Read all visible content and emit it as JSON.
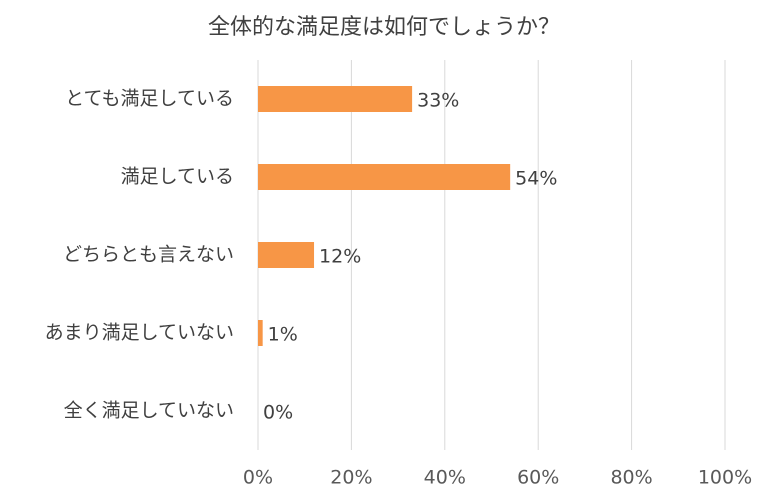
{
  "chart_data": {
    "type": "bar",
    "orientation": "horizontal",
    "title": "全体的な満足度は如何でしょうか？",
    "categories": [
      "とても満足している",
      "満足している",
      "どちらとも言えない",
      "あまり満足していない",
      "全く満足していない"
    ],
    "values": [
      33,
      54,
      12,
      1,
      0
    ],
    "value_labels": [
      "33%",
      "54%",
      "12%",
      "1%",
      "0%"
    ],
    "color": "#f79646",
    "xlim": [
      0,
      100
    ],
    "xticks": [
      {
        "value": 0,
        "label": "0%"
      },
      {
        "value": 20,
        "label": "20%"
      },
      {
        "value": 40,
        "label": "40%"
      },
      {
        "value": 60,
        "label": "60%"
      },
      {
        "value": 80,
        "label": "80%"
      },
      {
        "value": 100,
        "label": "100%"
      }
    ],
    "grid": true
  }
}
